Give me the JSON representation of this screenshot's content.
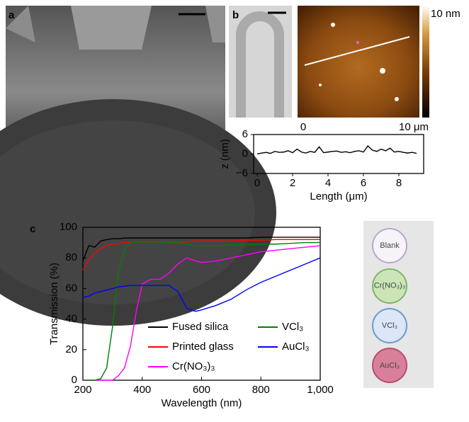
{
  "panels": {
    "a": "a",
    "b": "b",
    "c": "c"
  },
  "afm": {
    "colorbar_label": "10 nm",
    "x_start": "0",
    "x_end": "10 μm"
  },
  "photo": {
    "samples": [
      "Blank",
      "Cr(NO₃)₃",
      "VCl₃",
      "AuCl₃"
    ]
  },
  "chart_data": [
    {
      "type": "line",
      "x_label": "Length (μm)",
      "y_label": "z (nm)",
      "x": [
        0,
        0.25,
        0.5,
        0.75,
        1,
        1.25,
        1.5,
        1.75,
        2,
        2.25,
        2.5,
        2.75,
        3,
        3.25,
        3.5,
        3.75,
        4,
        4.25,
        4.5,
        4.75,
        5,
        5.25,
        5.5,
        5.75,
        6,
        6.25,
        6.5,
        6.75,
        7,
        7.25,
        7.5,
        7.75,
        8,
        8.25,
        8.5,
        8.75,
        9
      ],
      "series": [
        {
          "color": "#000000",
          "values": [
            0,
            0.3,
            0.5,
            0.2,
            0.8,
            0.5,
            0.6,
            1.0,
            0.4,
            1.5,
            0.6,
            0.3,
            0.8,
            0.5,
            2.2,
            0.4,
            0.6,
            0.8,
            0.9,
            0.5,
            0.7,
            0.4,
            0.8,
            1.0,
            0.6,
            2.5,
            1.2,
            0.8,
            1.5,
            1.0,
            1.8,
            0.6,
            0.8,
            0.5,
            0.3,
            0.5,
            0.2
          ]
        }
      ],
      "xlim": [
        -0.2,
        9.4
      ],
      "ylim": [
        -6,
        6
      ],
      "xticks": [
        0,
        2,
        4,
        6,
        8
      ],
      "yticks": [
        {
          "value": -6,
          "label": "−6"
        },
        0,
        6
      ]
    },
    {
      "type": "line",
      "x_label": "Wavelength (nm)",
      "y_label": "Transmission (%)",
      "x": [
        200,
        220,
        240,
        260,
        280,
        300,
        320,
        340,
        360,
        380,
        400,
        430,
        460,
        490,
        520,
        550,
        580,
        600,
        650,
        700,
        750,
        800,
        850,
        900,
        950,
        1000
      ],
      "series": [
        {
          "name": "Fused silica",
          "color": "#000000",
          "values": [
            78,
            88,
            87,
            91,
            92,
            92.5,
            92.5,
            93,
            93,
            93,
            93,
            93,
            93,
            93,
            93,
            93,
            93,
            93,
            93,
            93,
            93,
            93.5,
            93.5,
            93.5,
            93.5,
            93.5
          ]
        },
        {
          "name": "Printed glass",
          "color": "#ff0000",
          "values": [
            72,
            79,
            83,
            86,
            88,
            89,
            89.5,
            90,
            90,
            90.5,
            90.5,
            90.5,
            90.5,
            90.5,
            90.5,
            90.5,
            91,
            91,
            91,
            91,
            91.5,
            91.5,
            92,
            92,
            92,
            92
          ]
        },
        {
          "name": "Cr(NO₃)₃",
          "color": "#ff00ff",
          "values": [
            0,
            0,
            0,
            0,
            0,
            0,
            3,
            8,
            22,
            45,
            63,
            66,
            66,
            70,
            76,
            80,
            78,
            77,
            78,
            80,
            82,
            84,
            85,
            86,
            87,
            88
          ]
        },
        {
          "name": "VCl₃",
          "color": "#008000",
          "values": [
            0,
            0,
            0,
            1,
            8,
            35,
            70,
            86,
            90,
            90.5,
            90.5,
            90.5,
            90.5,
            90,
            90,
            89,
            88,
            88,
            88,
            88.5,
            88.5,
            89,
            89,
            89.5,
            90,
            90
          ]
        },
        {
          "name": "AuCl₃",
          "color": "#0000ff",
          "values": [
            54,
            55,
            57,
            58,
            59,
            60,
            61,
            61.5,
            62,
            62,
            62,
            62,
            62,
            62,
            58,
            47,
            45,
            46,
            49,
            53,
            59,
            64,
            68,
            72,
            76,
            80
          ]
        }
      ],
      "xlim": [
        200,
        1000
      ],
      "ylim": [
        0,
        100
      ],
      "xticks": [
        200,
        400,
        600,
        800,
        {
          "value": 1000,
          "label": "1,000"
        }
      ],
      "yticks": [
        0,
        20,
        40,
        60,
        80,
        100
      ]
    }
  ]
}
